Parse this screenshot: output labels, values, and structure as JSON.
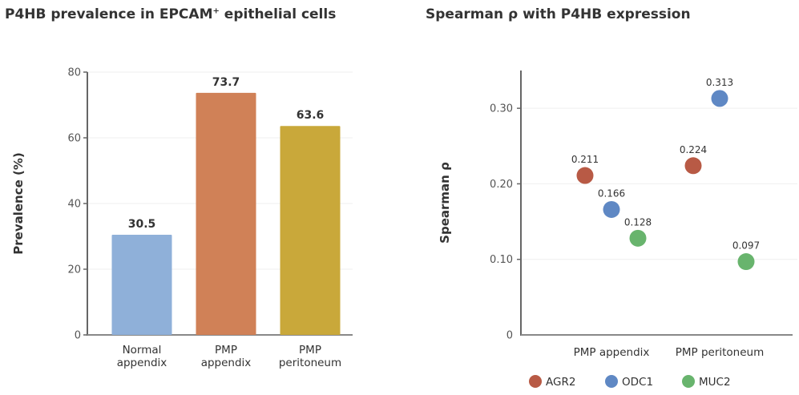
{
  "chart_data": [
    {
      "type": "bar",
      "title": "P4HB prevalence in EPCAM",
      "title_superscript": "+",
      "title_suffix": " epithelial cells",
      "xlabel": "",
      "ylabel": "Prevalence (%)",
      "ylim": [
        0,
        80
      ],
      "yticks": [
        0,
        20,
        40,
        60,
        80
      ],
      "ytick_labels": [
        "0",
        "20",
        "40",
        "60",
        "80"
      ],
      "grid": true,
      "categories": [
        [
          "Normal",
          "appendix"
        ],
        [
          "PMP",
          "appendix"
        ],
        [
          "PMP",
          "peritoneum"
        ]
      ],
      "values": [
        30.5,
        73.7,
        63.6
      ],
      "value_labels": [
        "30.5",
        "73.7",
        "63.6"
      ],
      "colors": [
        "#8fb0d9",
        "#d08157",
        "#c9a83a"
      ]
    },
    {
      "type": "scatter",
      "title": "Spearman ρ with P4HB expression",
      "xlabel": "",
      "ylabel": "Spearman ρ",
      "ylim": [
        0,
        0.35
      ],
      "yticks": [
        0,
        0.1,
        0.2,
        0.3
      ],
      "ytick_labels": [
        "0",
        "0.10",
        "0.20",
        "0.30"
      ],
      "grid": true,
      "categories": [
        "PMP appendix",
        "PMP peritoneum"
      ],
      "legend_position": "bottom",
      "series": [
        {
          "name": "AGR2",
          "color": "#b85a45",
          "values": [
            0.211,
            0.224
          ],
          "labels": [
            "0.211",
            "0.224"
          ]
        },
        {
          "name": "ODC1",
          "color": "#5f88c4",
          "values": [
            0.166,
            0.313
          ],
          "labels": [
            "0.166",
            "0.313"
          ]
        },
        {
          "name": "MUC2",
          "color": "#68b46d",
          "values": [
            0.128,
            0.097
          ],
          "labels": [
            "0.128",
            "0.097"
          ]
        }
      ]
    }
  ]
}
